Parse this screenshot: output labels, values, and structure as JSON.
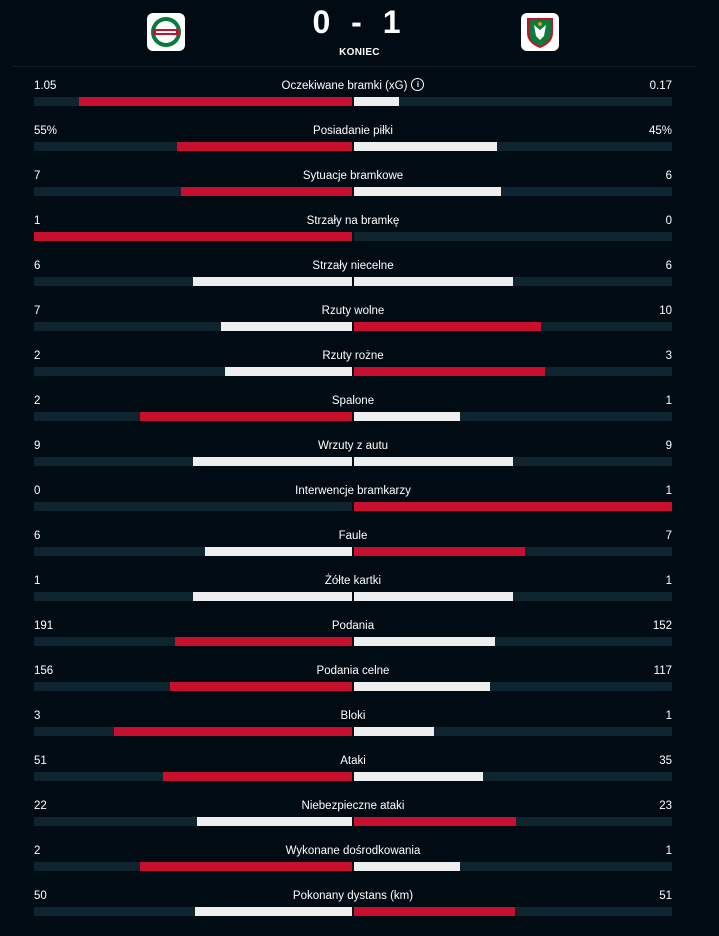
{
  "match": {
    "score": "0 - 1",
    "status": "KONIEC",
    "home_team_logo": "radomiak-crest-icon",
    "away_team_logo": "slask-crest-icon"
  },
  "colors": {
    "leader": "#c8102e",
    "trailer": "#eeeeee",
    "track": "#0e2530",
    "background": "#010b13"
  },
  "stats": [
    {
      "name": "Oczekiwane bramki (xG)",
      "home": "1.05",
      "away": "0.17",
      "home_share": 0.86,
      "away_share": 0.14,
      "leader": "home",
      "info": true
    },
    {
      "name": "Posiadanie piłki",
      "home": "55%",
      "away": "45%",
      "home_share": 0.55,
      "away_share": 0.45,
      "leader": "home"
    },
    {
      "name": "Sytuacje bramkowe",
      "home": "7",
      "away": "6",
      "home_share": 0.538,
      "away_share": 0.462,
      "leader": "home"
    },
    {
      "name": "Strzały na bramkę",
      "home": "1",
      "away": "0",
      "home_share": 1.0,
      "away_share": 0.0,
      "leader": "home"
    },
    {
      "name": "Strzały niecelne",
      "home": "6",
      "away": "6",
      "home_share": 0.5,
      "away_share": 0.5,
      "leader": "none"
    },
    {
      "name": "Rzuty wolne",
      "home": "7",
      "away": "10",
      "home_share": 0.412,
      "away_share": 0.588,
      "leader": "away"
    },
    {
      "name": "Rzuty rożne",
      "home": "2",
      "away": "3",
      "home_share": 0.4,
      "away_share": 0.6,
      "leader": "away"
    },
    {
      "name": "Spalone",
      "home": "2",
      "away": "1",
      "home_share": 0.667,
      "away_share": 0.333,
      "leader": "home"
    },
    {
      "name": "Wrzuty z autu",
      "home": "9",
      "away": "9",
      "home_share": 0.5,
      "away_share": 0.5,
      "leader": "none"
    },
    {
      "name": "Interwencje bramkarzy",
      "home": "0",
      "away": "1",
      "home_share": 0.0,
      "away_share": 1.0,
      "leader": "away"
    },
    {
      "name": "Faule",
      "home": "6",
      "away": "7",
      "home_share": 0.462,
      "away_share": 0.538,
      "leader": "away"
    },
    {
      "name": "Żółte kartki",
      "home": "1",
      "away": "1",
      "home_share": 0.5,
      "away_share": 0.5,
      "leader": "none"
    },
    {
      "name": "Podania",
      "home": "191",
      "away": "152",
      "home_share": 0.557,
      "away_share": 0.443,
      "leader": "home"
    },
    {
      "name": "Podania celne",
      "home": "156",
      "away": "117",
      "home_share": 0.571,
      "away_share": 0.429,
      "leader": "home"
    },
    {
      "name": "Bloki",
      "home": "3",
      "away": "1",
      "home_share": 0.75,
      "away_share": 0.25,
      "leader": "home"
    },
    {
      "name": "Ataki",
      "home": "51",
      "away": "35",
      "home_share": 0.593,
      "away_share": 0.407,
      "leader": "home"
    },
    {
      "name": "Niebezpieczne ataki",
      "home": "22",
      "away": "23",
      "home_share": 0.489,
      "away_share": 0.511,
      "leader": "away"
    },
    {
      "name": "Wykonane dośrodkowania",
      "home": "2",
      "away": "1",
      "home_share": 0.667,
      "away_share": 0.333,
      "leader": "home"
    },
    {
      "name": "Pokonany dystans (km)",
      "home": "50",
      "away": "51",
      "home_share": 0.495,
      "away_share": 0.505,
      "leader": "away"
    }
  ]
}
